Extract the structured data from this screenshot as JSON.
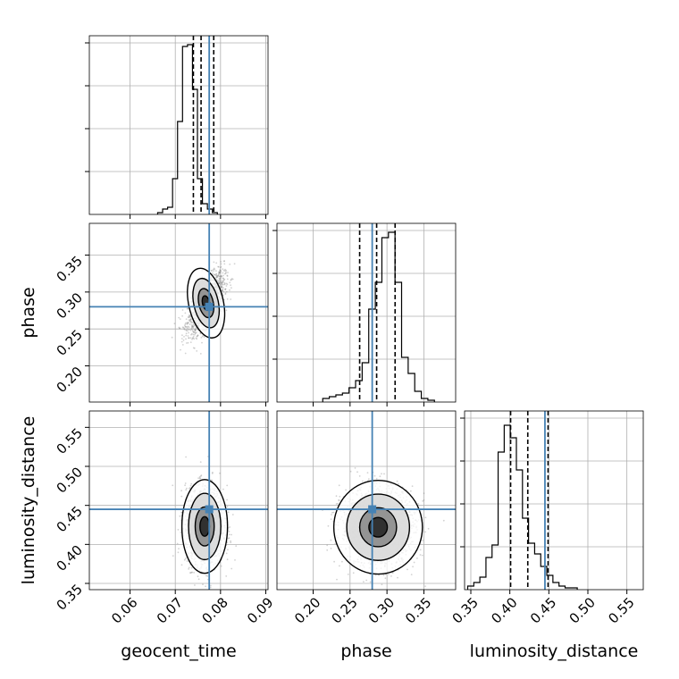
{
  "chart_data": {
    "type": "corner",
    "parameters": [
      "geocent_time",
      "phase",
      "luminosity_distance"
    ],
    "truths": {
      "geocent_time": 0.0775,
      "phase": 0.28,
      "luminosity_distance": 0.445
    },
    "ranges": {
      "geocent_time": [
        0.051,
        0.0905
      ],
      "phase": [
        0.151,
        0.393
      ],
      "luminosity_distance": [
        0.342,
        0.571
      ]
    },
    "ticks": {
      "geocent_time": [
        0.06,
        0.07,
        0.08,
        0.09
      ],
      "phase": [
        0.2,
        0.25,
        0.3,
        0.35
      ],
      "luminosity_distance": [
        0.35,
        0.4,
        0.45,
        0.5,
        0.55
      ]
    },
    "tick_labels": {
      "geocent_time": [
        "0.06",
        "0.07",
        "0.08",
        "0.09"
      ],
      "phase": [
        "0.20",
        "0.25",
        "0.30",
        "0.35"
      ],
      "phase_y": [
        "0.20",
        "0.25",
        "0.30",
        "0.35"
      ],
      "luminosity_distance": [
        "0.35",
        "0.40",
        "0.45",
        "0.50",
        "0.55"
      ]
    },
    "quantiles": {
      "geocent_time": [
        0.074,
        0.0757,
        0.0785
      ],
      "phase": [
        0.263,
        0.286,
        0.311
      ],
      "luminosity_distance": [
        0.401,
        0.423,
        0.449
      ]
    },
    "histograms": {
      "geocent_time": {
        "start": 0.0661,
        "width": 0.0011,
        "counts": [
          0.01,
          0.03,
          0.04,
          0.2,
          0.52,
          0.94,
          0.95,
          0.7,
          0.2,
          0.06,
          0.03,
          0.01
        ]
      },
      "phase": {
        "start": 0.213,
        "width": 0.0089,
        "counts": [
          0.02,
          0.03,
          0.04,
          0.05,
          0.08,
          0.12,
          0.22,
          0.52,
          0.67,
          0.92,
          0.95,
          0.67,
          0.25,
          0.16,
          0.06,
          0.02,
          0.01
        ]
      },
      "luminosity_distance": {
        "start": 0.346,
        "width": 0.0078,
        "counts": [
          0.02,
          0.04,
          0.07,
          0.18,
          0.25,
          0.77,
          0.92,
          0.85,
          0.67,
          0.4,
          0.26,
          0.2,
          0.13,
          0.08,
          0.04,
          0.02,
          0.01,
          0.01
        ]
      }
    },
    "pairs": [
      {
        "x": "geocent_time",
        "y": "phase",
        "cx": 0.0768,
        "cy": 0.285,
        "sx": 0.002,
        "sy": 0.02,
        "corr": 0.65
      },
      {
        "x": "geocent_time",
        "y": "luminosity_distance",
        "cx": 0.0765,
        "cy": 0.423,
        "sx": 0.0021,
        "sy": 0.025,
        "corr": 0.0
      },
      {
        "x": "phase",
        "y": "luminosity_distance",
        "cx": 0.288,
        "cy": 0.422,
        "sx": 0.025,
        "sy": 0.025,
        "corr": 0.0
      }
    ],
    "xlabel": [
      "geocent_time",
      "phase",
      "luminosity_distance"
    ],
    "ylabel": [
      "",
      "phase",
      "luminosity_distance"
    ],
    "grid": true,
    "colors": {
      "truth": "#4682b4",
      "contour": "#000000",
      "hist": "#000000",
      "scatter": "#7f7f7f"
    }
  }
}
